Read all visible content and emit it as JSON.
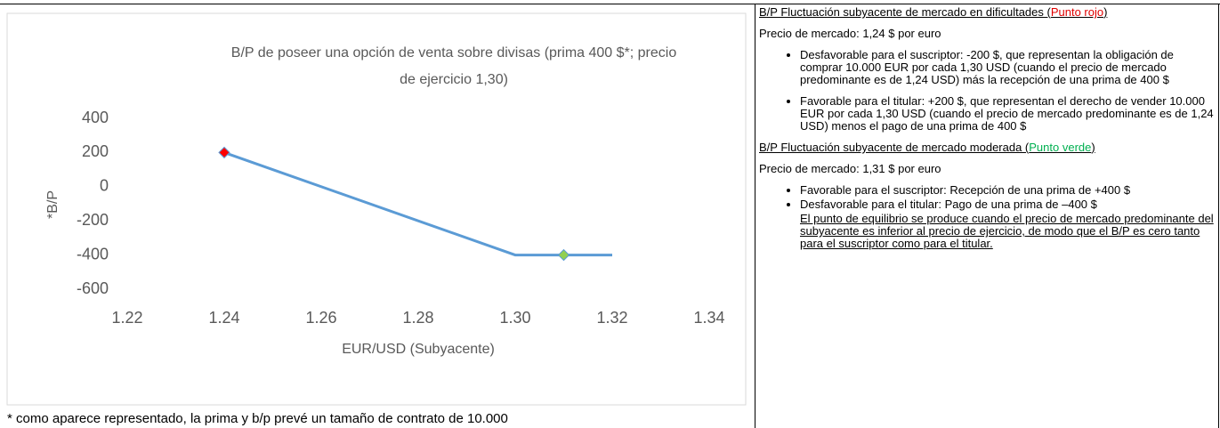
{
  "chart_data": {
    "type": "line",
    "title": "B/P de poseer una opción de venta sobre divisas (prima 400 $*; precio de ejercicio 1,30)",
    "x_label": "EUR/USD (Subyacente)",
    "y_label": "*B/P",
    "x": [
      1.24,
      1.3,
      1.32
    ],
    "values": [
      200,
      -400,
      -400
    ],
    "color": "#5b9bd5",
    "markers": [
      {
        "x": 1.24,
        "value": 200,
        "color": "#ff0000"
      },
      {
        "x": 1.31,
        "value": -400,
        "color": "#92d050"
      }
    ],
    "xlim": [
      1.22,
      1.34
    ],
    "xticks": [
      1.22,
      1.24,
      1.26,
      1.28,
      {
        "value": 1.3,
        "label": "1.30"
      },
      1.32,
      1.34
    ],
    "ylim": [
      -600,
      400
    ],
    "yticks": [
      400,
      200,
      0,
      -200,
      -400,
      -600
    ],
    "grid": false
  },
  "footnote": "* como aparece representado, la prima y b/p prevé un tamaño de contrato de 10.000",
  "panel": {
    "heading1": [
      "B/P Fluctuación subyacente de mercado en dificultades (",
      "Punto rojo",
      ")"
    ],
    "price1": "Precio de mercado: 1,24 $ por euro",
    "bullets1": [
      "Desfavorable para el suscriptor: -200 $, que representan la obligación de comprar 10.000 EUR por cada 1,30 USD (cuando el precio de mercado predominante es de 1,24 USD) más la recepción de una prima de 400 $",
      "Favorable para el titular: +200 $, que representan el derecho de vender 10.000 EUR por cada 1,30 USD (cuando el precio de mercado predominante es de 1,24 USD) menos el pago de una prima de 400 $"
    ],
    "heading2": [
      "B/P Fluctuación subyacente de mercado moderada (",
      "Punto verde",
      ")"
    ],
    "price2": "Precio de mercado: 1,31 $ por euro",
    "bullets2": [
      "Favorable para el suscriptor: Recepción de una prima de +400 $",
      "Desfavorable para el titular: Pago de una prima de –400 $"
    ],
    "conclusion": "El punto de equilibrio se produce cuando el precio de mercado predominante del subyacente es inferior al precio de ejercicio, de modo que el B/P es cero tanto para el suscriptor como para el titular."
  }
}
